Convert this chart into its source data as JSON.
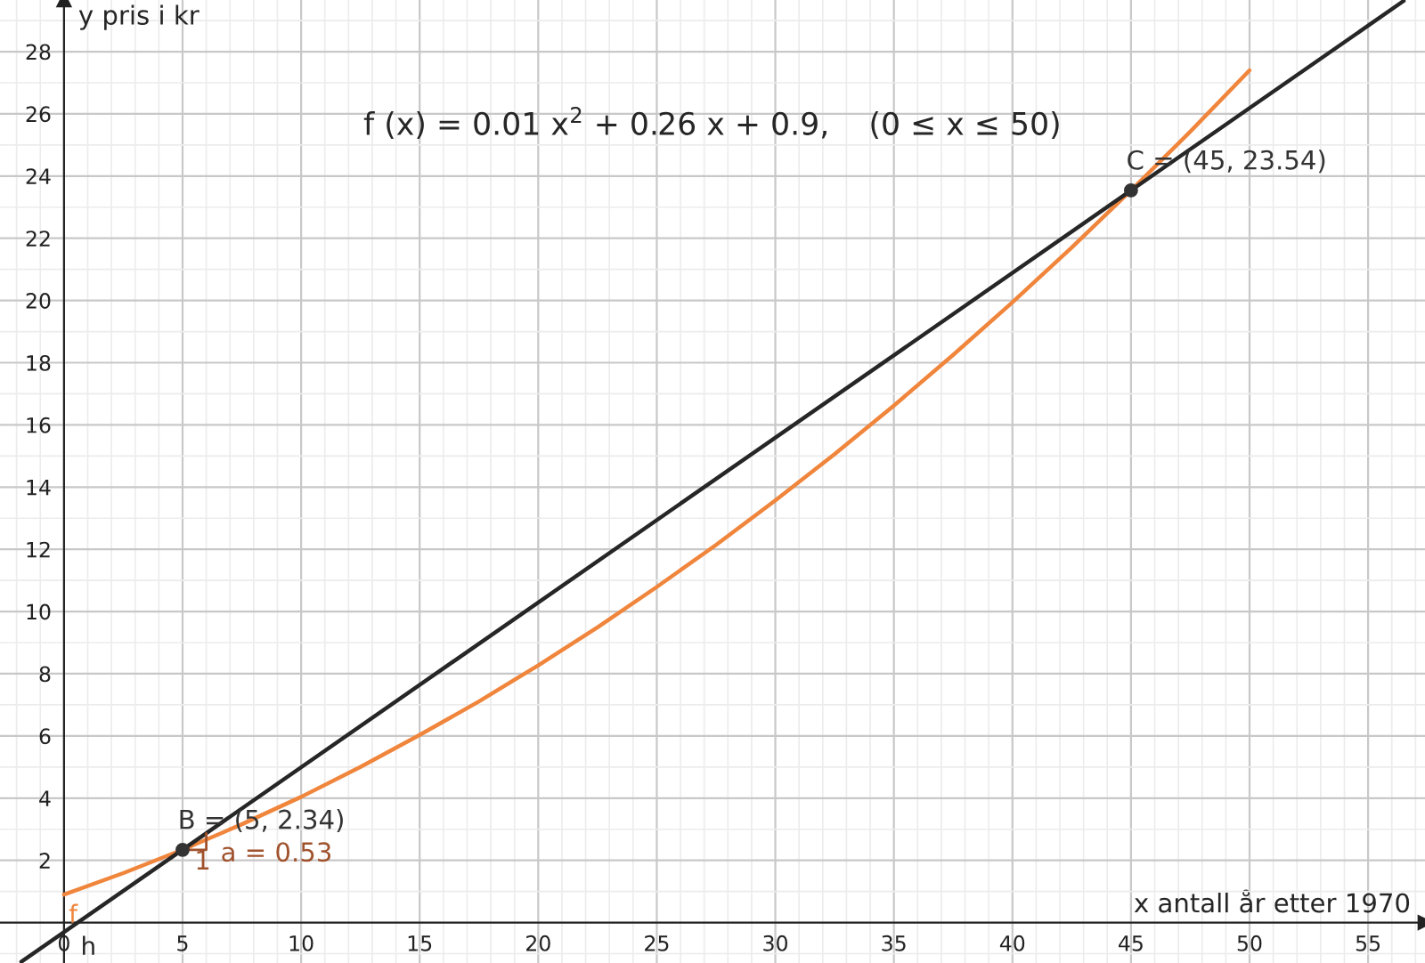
{
  "chart_data": {
    "type": "line",
    "xlabel": "x antall år etter 1970",
    "ylabel": "y pris i kr",
    "xlim": [
      -2.7,
      57.4
    ],
    "ylim": [
      -1.3,
      29.66
    ],
    "xticks": [
      0,
      5,
      10,
      15,
      20,
      25,
      30,
      35,
      40,
      45,
      50,
      55
    ],
    "yticks": [
      2,
      4,
      6,
      8,
      10,
      12,
      14,
      16,
      18,
      20,
      22,
      24,
      26,
      28
    ],
    "grid": true,
    "series": [
      {
        "name": "f",
        "color": "#f0853c",
        "x": [
          0,
          2.5,
          5,
          7.5,
          10,
          12.5,
          15,
          17.5,
          20,
          22.5,
          25,
          27.5,
          30,
          32.5,
          35,
          37.5,
          40,
          42.5,
          45,
          47.5,
          50
        ],
        "values": [
          0.9,
          1.59,
          2.34,
          3.16,
          4.04,
          5.0,
          6.03,
          7.11,
          8.27,
          9.49,
          10.79,
          12.14,
          13.57,
          15.06,
          16.62,
          18.25,
          19.94,
          21.7,
          23.54,
          25.43,
          27.4
        ]
      },
      {
        "name": "h",
        "color": "#262626",
        "x": [
          -1.8,
          56.5
        ],
        "values": [
          -1.26,
          29.63
        ]
      },
      {
        "name": "B = (5, 2.34)",
        "type": "scatter",
        "color": "#333333",
        "x": [
          5
        ],
        "values": [
          2.34
        ]
      },
      {
        "name": "C = (45, 23.54)",
        "type": "scatter",
        "color": "#333333",
        "x": [
          45
        ],
        "values": [
          23.54
        ]
      }
    ],
    "annotations": [
      "f (x) = 0.01 x$^{2}$ + 0.26 x + 0.9,    (0 ≤ x ≤ 50)",
      {
        "text": "1",
        "x": 5.5,
        "y": 2.34
      },
      {
        "text": "a = 0.53",
        "x": 6.6,
        "y": 2.6
      }
    ]
  }
}
